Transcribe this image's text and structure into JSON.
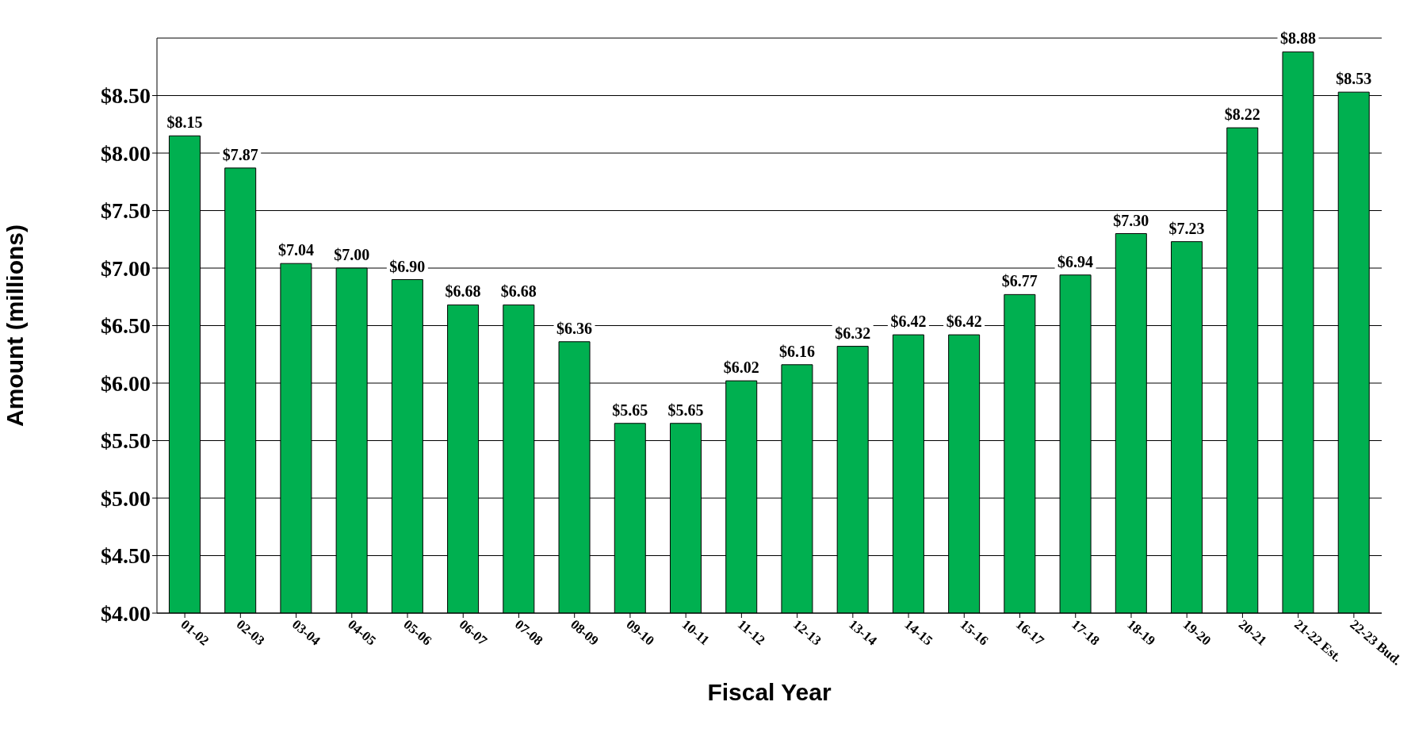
{
  "chart_data": {
    "type": "bar",
    "xlabel": "Fiscal Year",
    "ylabel": "Amount (millions)",
    "categories": [
      "01-02",
      "02-03",
      "03-04",
      "04-05",
      "05-06",
      "06-07",
      "07-08",
      "08-09",
      "09-10",
      "10-11",
      "11-12",
      "12-13",
      "13-14",
      "14-15",
      "15-16",
      "16-17",
      "17-18",
      "18-19",
      "19-20",
      "20-21",
      "21-22 Est.",
      "22-23 Bud."
    ],
    "values": [
      8.15,
      7.87,
      7.04,
      7.0,
      6.9,
      6.68,
      6.68,
      6.36,
      5.65,
      5.65,
      6.02,
      6.16,
      6.32,
      6.42,
      6.42,
      6.77,
      6.94,
      7.3,
      7.23,
      8.22,
      8.88,
      8.53
    ],
    "value_labels": [
      "$8.15",
      "$7.87",
      "$7.04",
      "$7.00",
      "$6.90",
      "$6.68",
      "$6.68",
      "$6.36",
      "$5.65",
      "$5.65",
      "$6.02",
      "$6.16",
      "$6.32",
      "$6.42",
      "$6.42",
      "$6.77",
      "$6.94",
      "$7.30",
      "$7.23",
      "$8.22",
      "$8.88",
      "$8.53"
    ],
    "color": "#00b050",
    "ylim": [
      4,
      9
    ],
    "yticks": [
      {
        "value": 4,
        "label": "$4.00"
      },
      {
        "value": 4.5,
        "label": "$4.50"
      },
      {
        "value": 5,
        "label": "$5.00"
      },
      {
        "value": 5.5,
        "label": "$5.50"
      },
      {
        "value": 6,
        "label": "$6.00"
      },
      {
        "value": 6.5,
        "label": "$6.50"
      },
      {
        "value": 7,
        "label": "$7.00"
      },
      {
        "value": 7.5,
        "label": "$7.50"
      },
      {
        "value": 8,
        "label": "$8.00"
      },
      {
        "value": 8.5,
        "label": "$8.50"
      }
    ],
    "grid": "y"
  }
}
